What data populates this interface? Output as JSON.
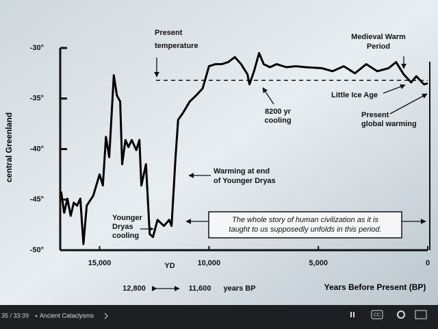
{
  "chart_data": {
    "type": "line",
    "y_label": "central Greenland",
    "x_label": "Years Before Present (BP)",
    "xlim": [
      16800,
      0
    ],
    "xticks": [
      {
        "value": 15000,
        "label": "15,000"
      },
      {
        "value": 10000,
        "label": "10,000"
      },
      {
        "value": 5000,
        "label": "5,000"
      },
      0
    ],
    "ylim": [
      -50,
      -30
    ],
    "yticks": [
      {
        "value": -30,
        "label": "-30°"
      },
      {
        "value": -35,
        "label": "-35°"
      },
      {
        "value": -40,
        "label": "-40°"
      },
      {
        "value": -45,
        "label": "-45°"
      },
      {
        "value": -50,
        "label": "-50°"
      }
    ],
    "present_temperature": -33.2,
    "series": [
      {
        "color": "#000000",
        "x": [
          16760,
          16620,
          16470,
          16320,
          16180,
          16030,
          15880,
          15740,
          15590,
          15290,
          15000,
          14850,
          14710,
          14560,
          14350,
          14210,
          14060,
          13970,
          13820,
          13680,
          13530,
          13320,
          13180,
          13090,
          12880,
          12710,
          12560,
          12350,
          12060,
          11820,
          11710,
          11530,
          11410,
          11180,
          10880,
          10590,
          10290,
          10000,
          9700,
          9410,
          9120,
          8820,
          8530,
          8240,
          8150,
          7940,
          7710,
          7500,
          7210,
          6910,
          6470,
          6030,
          5590,
          4840,
          4350,
          3840,
          3330,
          2810,
          2310,
          1790,
          1450,
          1100,
          760,
          520,
          170,
          0
        ],
        "values": [
          -44.2,
          -46.3,
          -44.9,
          -46.6,
          -45.3,
          -45.6,
          -44.9,
          -49.4,
          -45.6,
          -44.6,
          -42.5,
          -43.6,
          -38.8,
          -40.8,
          -32.7,
          -34.7,
          -35.3,
          -41.5,
          -39.1,
          -39.8,
          -39.1,
          -40.1,
          -39.1,
          -43.6,
          -41.5,
          -48.4,
          -48.7,
          -47.0,
          -47.6,
          -47.0,
          -47.6,
          -40.8,
          -37.1,
          -36.4,
          -35.3,
          -34.7,
          -34.0,
          -31.8,
          -31.6,
          -31.6,
          -31.4,
          -30.9,
          -31.6,
          -32.6,
          -33.6,
          -32.3,
          -30.5,
          -31.6,
          -31.9,
          -31.6,
          -31.9,
          -31.8,
          -31.9,
          -32.0,
          -32.3,
          -31.8,
          -32.5,
          -31.6,
          -32.3,
          -32.0,
          -31.4,
          -32.6,
          -33.4,
          -32.8,
          -33.6,
          -33.5
        ]
      }
    ],
    "annotations": {
      "present_temperature": [
        "Present",
        "temperature"
      ],
      "medieval": [
        "Medieval Warm",
        "Period"
      ],
      "little_ice_age": [
        "Little Ice Age"
      ],
      "cooling_8200": [
        "8200 yr",
        "cooling"
      ],
      "global_warming": [
        "Present",
        "global warming"
      ],
      "warming_yd": [
        "Warming at end",
        "of Younger Dryas"
      ],
      "yd_cooling": [
        "Younger",
        "Dryas",
        "cooling"
      ],
      "civilization": [
        "The whole story of human civilization as it is",
        "taught to us supposedly unfolds in this period."
      ],
      "yd": "YD",
      "start": "12,800",
      "end": "11,600",
      "unit": "years BP"
    }
  },
  "player": {
    "time": "35 / 33:39",
    "chapter": "Ancient Cataclysms",
    "cc": "CC"
  }
}
